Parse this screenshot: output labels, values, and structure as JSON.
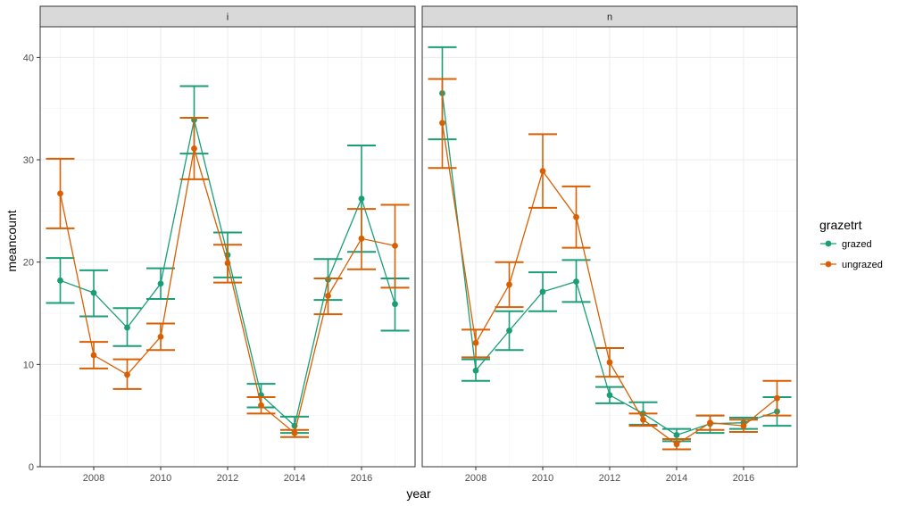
{
  "chart_data": {
    "type": "line",
    "x_label": "year",
    "y_label": "meancount",
    "y_range": [
      0,
      43
    ],
    "x_range": [
      2006.4,
      2017.6
    ],
    "x_ticks": [
      2008,
      2010,
      2012,
      2014,
      2016
    ],
    "y_ticks": [
      0,
      10,
      20,
      30,
      40
    ],
    "grid": true,
    "legend_position": "right",
    "legend_title": "grazetrt",
    "colors": {
      "grazed": "#1b9e77",
      "ungrazed": "#d95f02"
    },
    "series_names": [
      "grazed",
      "ungrazed"
    ],
    "facets": [
      {
        "label": "i",
        "series": [
          {
            "name": "grazed",
            "points": [
              {
                "x": 2007,
                "y": 18.2,
                "lo": 16.0,
                "hi": 20.4
              },
              {
                "x": 2008,
                "y": 17.0,
                "lo": 14.7,
                "hi": 19.2
              },
              {
                "x": 2009,
                "y": 13.6,
                "lo": 11.8,
                "hi": 15.5
              },
              {
                "x": 2010,
                "y": 17.9,
                "lo": 16.4,
                "hi": 19.4
              },
              {
                "x": 2011,
                "y": 33.9,
                "lo": 30.6,
                "hi": 37.2
              },
              {
                "x": 2012,
                "y": 20.7,
                "lo": 18.5,
                "hi": 22.9
              },
              {
                "x": 2013,
                "y": 7.0,
                "lo": 5.8,
                "hi": 8.1
              },
              {
                "x": 2014,
                "y": 4.0,
                "lo": 3.3,
                "hi": 4.9
              },
              {
                "x": 2015,
                "y": 18.3,
                "lo": 16.3,
                "hi": 20.3
              },
              {
                "x": 2016,
                "y": 26.2,
                "lo": 21.0,
                "hi": 31.4
              },
              {
                "x": 2017,
                "y": 15.9,
                "lo": 13.3,
                "hi": 18.4
              }
            ]
          },
          {
            "name": "ungrazed",
            "points": [
              {
                "x": 2007,
                "y": 26.7,
                "lo": 23.3,
                "hi": 30.1
              },
              {
                "x": 2008,
                "y": 10.9,
                "lo": 9.6,
                "hi": 12.2
              },
              {
                "x": 2009,
                "y": 9.0,
                "lo": 7.6,
                "hi": 10.5
              },
              {
                "x": 2010,
                "y": 12.7,
                "lo": 11.4,
                "hi": 14.0
              },
              {
                "x": 2011,
                "y": 31.1,
                "lo": 28.1,
                "hi": 34.1
              },
              {
                "x": 2012,
                "y": 19.9,
                "lo": 18.0,
                "hi": 21.7
              },
              {
                "x": 2013,
                "y": 6.0,
                "lo": 5.2,
                "hi": 6.8
              },
              {
                "x": 2014,
                "y": 3.3,
                "lo": 2.9,
                "hi": 3.6
              },
              {
                "x": 2015,
                "y": 16.7,
                "lo": 14.9,
                "hi": 18.4
              },
              {
                "x": 2016,
                "y": 22.3,
                "lo": 19.3,
                "hi": 25.2
              },
              {
                "x": 2017,
                "y": 21.6,
                "lo": 17.5,
                "hi": 25.6
              }
            ]
          }
        ]
      },
      {
        "label": "n",
        "series": [
          {
            "name": "grazed",
            "points": [
              {
                "x": 2007,
                "y": 36.5,
                "lo": 32.0,
                "hi": 41.0
              },
              {
                "x": 2008,
                "y": 9.4,
                "lo": 8.4,
                "hi": 10.5
              },
              {
                "x": 2009,
                "y": 13.3,
                "lo": 11.4,
                "hi": 15.2
              },
              {
                "x": 2010,
                "y": 17.1,
                "lo": 15.2,
                "hi": 19.0
              },
              {
                "x": 2011,
                "y": 18.1,
                "lo": 16.1,
                "hi": 20.2
              },
              {
                "x": 2012,
                "y": 7.0,
                "lo": 6.2,
                "hi": 7.8
              },
              {
                "x": 2013,
                "y": 5.2,
                "lo": 4.1,
                "hi": 6.3
              },
              {
                "x": 2014,
                "y": 3.1,
                "lo": 2.5,
                "hi": 3.7
              },
              {
                "x": 2015,
                "y": 4.2,
                "lo": 3.3,
                "hi": 5.0
              },
              {
                "x": 2016,
                "y": 4.3,
                "lo": 3.7,
                "hi": 4.8
              },
              {
                "x": 2017,
                "y": 5.4,
                "lo": 4.0,
                "hi": 6.8
              }
            ]
          },
          {
            "name": "ungrazed",
            "points": [
              {
                "x": 2007,
                "y": 33.6,
                "lo": 29.2,
                "hi": 37.9
              },
              {
                "x": 2008,
                "y": 12.1,
                "lo": 10.7,
                "hi": 13.4
              },
              {
                "x": 2009,
                "y": 17.8,
                "lo": 15.6,
                "hi": 20.0
              },
              {
                "x": 2010,
                "y": 28.9,
                "lo": 25.3,
                "hi": 32.5
              },
              {
                "x": 2011,
                "y": 24.4,
                "lo": 21.4,
                "hi": 27.4
              },
              {
                "x": 2012,
                "y": 10.2,
                "lo": 8.8,
                "hi": 11.6
              },
              {
                "x": 2013,
                "y": 4.6,
                "lo": 4.0,
                "hi": 5.2
              },
              {
                "x": 2014,
                "y": 2.2,
                "lo": 1.7,
                "hi": 2.7
              },
              {
                "x": 2015,
                "y": 4.3,
                "lo": 3.6,
                "hi": 5.0
              },
              {
                "x": 2016,
                "y": 4.0,
                "lo": 3.4,
                "hi": 4.6
              },
              {
                "x": 2017,
                "y": 6.7,
                "lo": 5.0,
                "hi": 8.4
              }
            ]
          }
        ]
      }
    ]
  }
}
